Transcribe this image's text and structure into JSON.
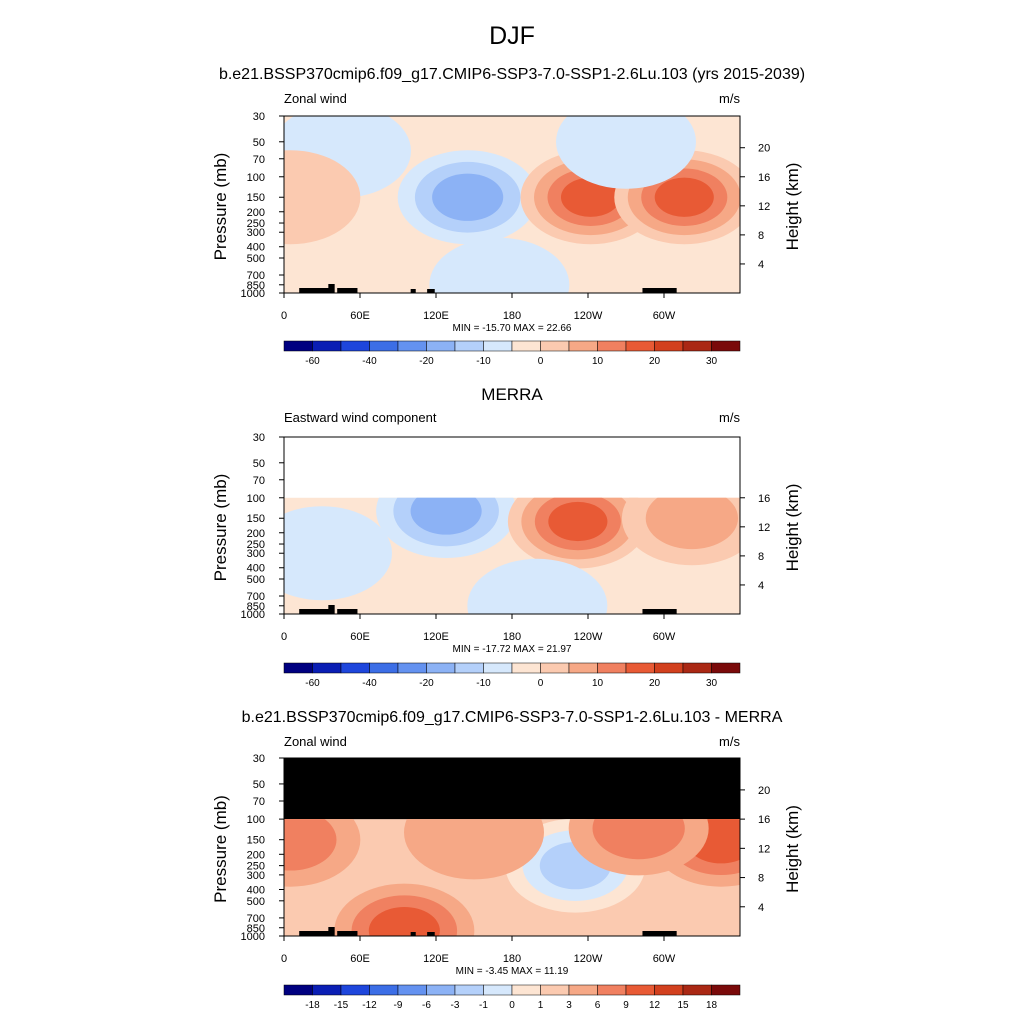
{
  "figure_title": "DJF",
  "chart_data": [
    {
      "type": "heatmap",
      "panel_title": "b.e21.BSSP370cmip6.f09_g17.CMIP6-SSP3-7.0-SSP1-2.6Lu.103 (yrs 2015-2039)",
      "left_label": "Zonal wind",
      "units": "m/s",
      "ylabel_left": "Pressure (mb)",
      "ylabel_right": "Height (km)",
      "x_ticks": [
        "0",
        "60E",
        "120E",
        "180",
        "120W",
        "60W"
      ],
      "pressure_ticks": [
        "30",
        "50",
        "70",
        "100",
        "150",
        "200",
        "250",
        "300",
        "400",
        "500",
        "700",
        "850",
        "1000"
      ],
      "height_ticks": [
        "20",
        "16",
        "12",
        "8",
        "4"
      ],
      "stats": "MIN = -15.70  MAX =  22.66",
      "min": -15.7,
      "max": 22.66,
      "data_top_mb": 30,
      "colorbar_labels": [
        "-60",
        "-40",
        "-20",
        "-10",
        "0",
        "10",
        "20",
        "30"
      ],
      "features": [
        {
          "lon": 145,
          "p": 150,
          "value": -12
        },
        {
          "lon": 242,
          "p": 150,
          "value": 22.66
        },
        {
          "lon": 316,
          "p": 150,
          "value": 20
        },
        {
          "lon": 95,
          "p": 850,
          "value": 4
        },
        {
          "lon": 170,
          "p": 850,
          "value": -3
        },
        {
          "lon": 45,
          "p": 60,
          "value": -3
        },
        {
          "lon": 270,
          "p": 50,
          "value": -3
        },
        {
          "lon": 5,
          "p": 150,
          "value": 6
        }
      ]
    },
    {
      "type": "heatmap",
      "panel_title": "MERRA",
      "left_label": "Eastward wind component",
      "units": "m/s",
      "ylabel_left": "Pressure (mb)",
      "ylabel_right": "Height (km)",
      "x_ticks": [
        "0",
        "60E",
        "120E",
        "180",
        "120W",
        "60W"
      ],
      "pressure_ticks": [
        "30",
        "50",
        "70",
        "100",
        "150",
        "200",
        "250",
        "300",
        "400",
        "500",
        "700",
        "850",
        "1000"
      ],
      "height_ticks": [
        "16",
        "12",
        "8",
        "4"
      ],
      "stats": "MIN = -17.72  MAX =  21.97",
      "min": -17.72,
      "max": 21.97,
      "data_top_mb": 100,
      "colorbar_labels": [
        "-60",
        "-40",
        "-20",
        "-10",
        "0",
        "10",
        "20",
        "30"
      ],
      "features": [
        {
          "lon": 128,
          "p": 130,
          "value": -12
        },
        {
          "lon": 232,
          "p": 160,
          "value": 21.97
        },
        {
          "lon": 322,
          "p": 150,
          "value": 14
        },
        {
          "lon": 95,
          "p": 850,
          "value": 4
        },
        {
          "lon": 30,
          "p": 300,
          "value": -3
        },
        {
          "lon": 200,
          "p": 850,
          "value": -4
        }
      ]
    },
    {
      "type": "heatmap",
      "panel_title": "b.e21.BSSP370cmip6.f09_g17.CMIP6-SSP3-7.0-SSP1-2.6Lu.103 - MERRA",
      "left_label": "Zonal wind",
      "units": "m/s",
      "ylabel_left": "Pressure (mb)",
      "ylabel_right": "Height (km)",
      "x_ticks": [
        "0",
        "60E",
        "120E",
        "180",
        "120W",
        "60W"
      ],
      "pressure_ticks": [
        "30",
        "50",
        "70",
        "100",
        "150",
        "200",
        "250",
        "300",
        "400",
        "500",
        "700",
        "850",
        "1000"
      ],
      "height_ticks": [
        "20",
        "16",
        "12",
        "8",
        "4"
      ],
      "stats": "MIN =  -3.45  MAX =  11.19",
      "min": -3.45,
      "max": 11.19,
      "data_top_mb": 100,
      "colorbar_labels": [
        "-18",
        "-15",
        "-12",
        "-9",
        "-6",
        "-3",
        "-1",
        "0",
        "1",
        "3",
        "6",
        "9",
        "12",
        "15",
        "18"
      ],
      "features": [
        {
          "lon": 230,
          "p": 250,
          "value": -3
        },
        {
          "lon": 345,
          "p": 150,
          "value": 11.19
        },
        {
          "lon": 280,
          "p": 120,
          "value": 8
        },
        {
          "lon": 5,
          "p": 150,
          "value": 7
        },
        {
          "lon": 95,
          "p": 900,
          "value": 9
        },
        {
          "lon": 150,
          "p": 130,
          "value": 5
        }
      ]
    }
  ],
  "colorbar_colors": [
    "#000080",
    "#0a1eb4",
    "#1e46dc",
    "#3c6ee6",
    "#6492f0",
    "#8cb2f5",
    "#b4d0fa",
    "#d6e8fc",
    "#fde5d3",
    "#fbcab0",
    "#f6a886",
    "#f08060",
    "#e85a35",
    "#d2401e",
    "#aa2814",
    "#7a0a0a"
  ],
  "topography_color": "#000000"
}
